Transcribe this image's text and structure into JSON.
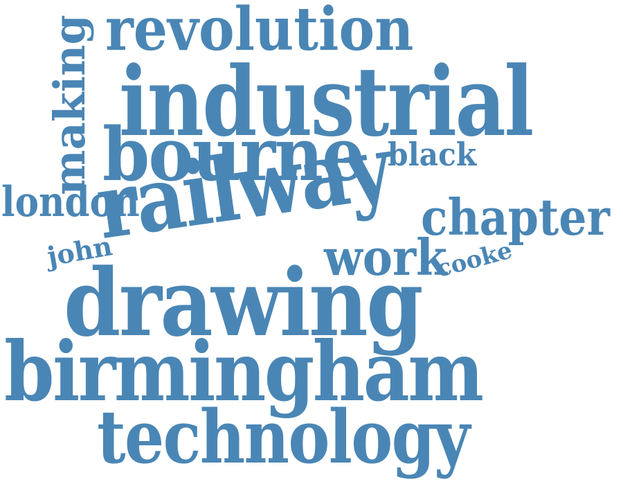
{
  "colors": {
    "word": "#4a86b5",
    "background": "#ffffff"
  },
  "words": {
    "revolution": "revolution",
    "industrial": "industrial",
    "bourne": "bourne",
    "black": "black",
    "making": "making",
    "london": "london",
    "railway": "railway",
    "chapter": "chapter",
    "john": "john",
    "work": "work",
    "cooke": "cooke",
    "drawing": "drawing",
    "birmingham": "birmingham",
    "technology": "technology"
  }
}
